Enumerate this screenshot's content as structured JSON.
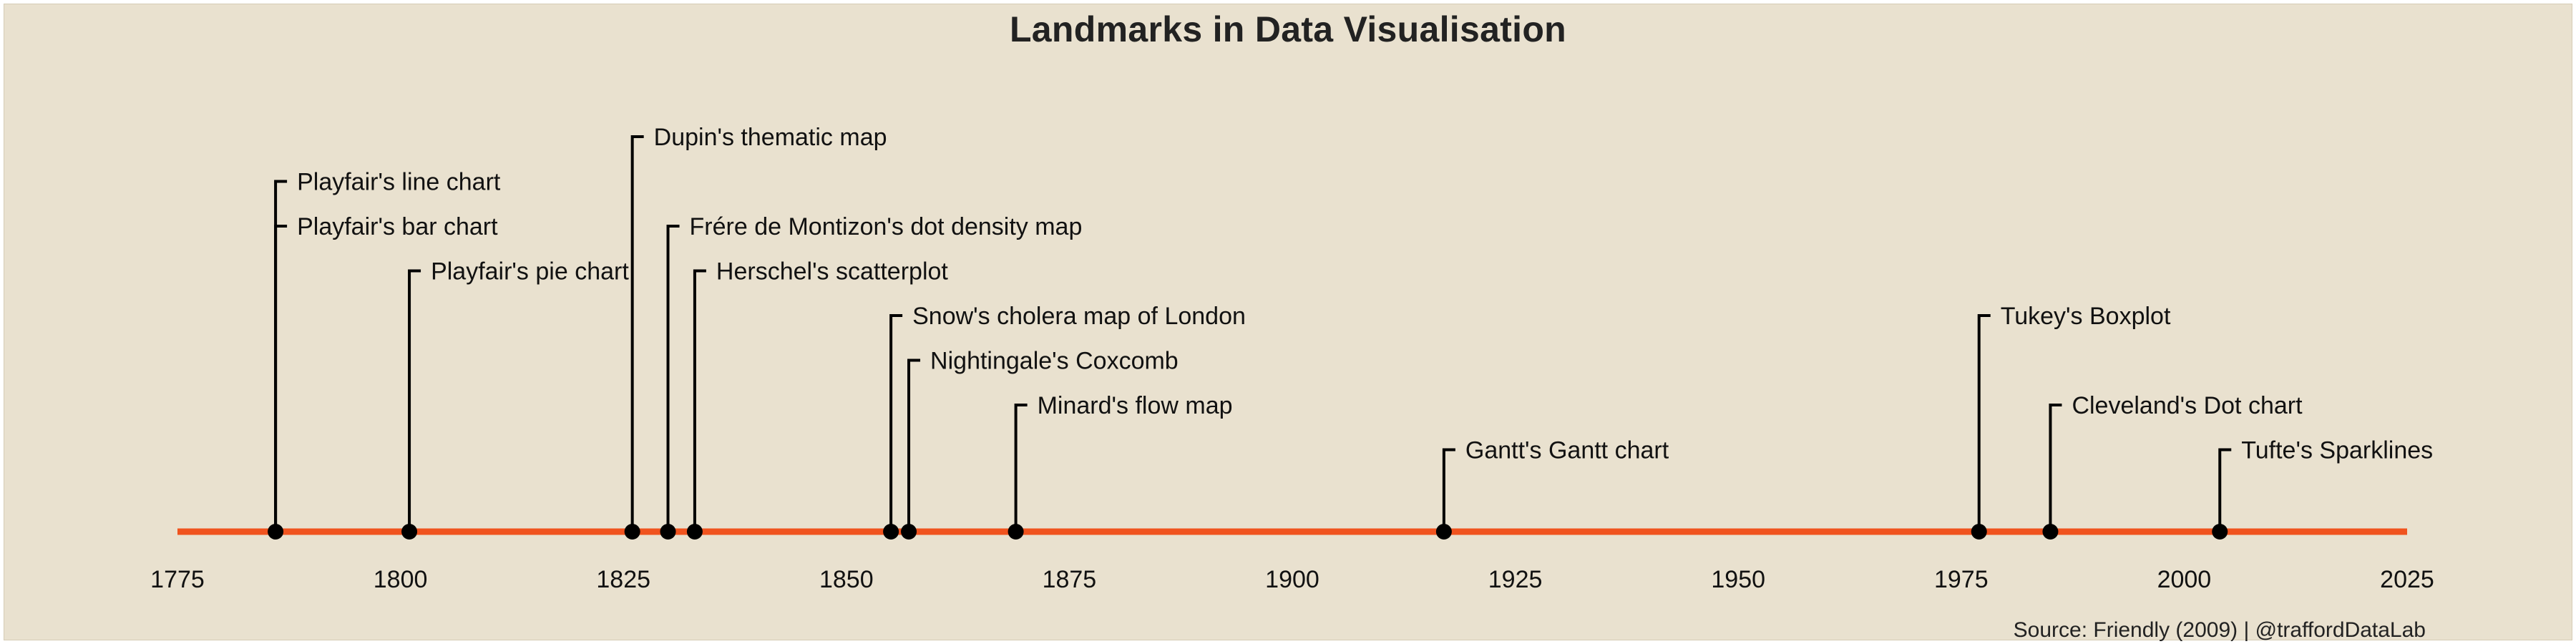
{
  "title": "Landmarks in Data Visualisation",
  "caption": "Source: Friendly (2009)  |  @traffordDataLab",
  "colors": {
    "background": "#e9e1cf",
    "axis_line": "#f0531e",
    "point": "#000000",
    "stem": "#000000",
    "text": "#111111"
  },
  "chart_data": {
    "type": "timeline",
    "title": "Landmarks in Data Visualisation",
    "xlim": [
      1775,
      2025
    ],
    "x_ticks": [
      1775,
      1800,
      1825,
      1850,
      1875,
      1900,
      1925,
      1950,
      1975,
      2000,
      2025
    ],
    "grid": false,
    "legend": "none",
    "events": [
      {
        "year": 1786,
        "label": "Playfair's line chart",
        "level": 7
      },
      {
        "year": 1786,
        "label": "Playfair's bar chart",
        "level": 6
      },
      {
        "year": 1801,
        "label": "Playfair's pie chart",
        "level": 5
      },
      {
        "year": 1826,
        "label": "Dupin's thematic map",
        "level": 8
      },
      {
        "year": 1830,
        "label": "Frére de Montizon's dot density map",
        "level": 6
      },
      {
        "year": 1833,
        "label": "Herschel's scatterplot",
        "level": 5
      },
      {
        "year": 1855,
        "label": "Snow's cholera map of London",
        "level": 4
      },
      {
        "year": 1857,
        "label": "Nightingale's Coxcomb",
        "level": 3
      },
      {
        "year": 1869,
        "label": "Minard's flow map",
        "level": 2
      },
      {
        "year": 1917,
        "label": "Gantt's Gantt chart",
        "level": 1
      },
      {
        "year": 1977,
        "label": "Tukey's Boxplot",
        "level": 4
      },
      {
        "year": 1985,
        "label": "Cleveland's Dot chart",
        "level": 2
      },
      {
        "year": 2004,
        "label": "Tufte's Sparklines",
        "level": 1
      }
    ]
  }
}
